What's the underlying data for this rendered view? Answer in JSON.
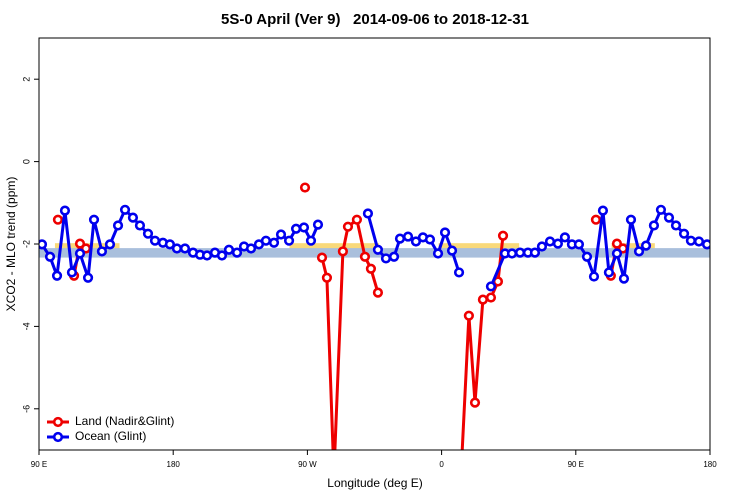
{
  "chart_data": {
    "type": "line",
    "title": "5S-0 April (Ver 9)   2014-09-06 to 2018-12-31",
    "x_label": "Longitude (deg E)",
    "y_label": "XCO2 - MLO trend (ppm)",
    "xlim": [
      90,
      540
    ],
    "xticks": [
      {
        "value": 90,
        "label": "90 E"
      },
      {
        "value": 180,
        "label": "180"
      },
      {
        "value": 270,
        "label": "90 W"
      },
      {
        "value": 360,
        "label": "0"
      },
      {
        "value": 450,
        "label": "90 E"
      },
      {
        "value": 540,
        "label": "180"
      }
    ],
    "ylim": [
      -7,
      3
    ],
    "yticks": [
      2,
      0,
      -2,
      -4,
      -6
    ],
    "legend": "bottomleft",
    "bands": [
      {
        "color": "#f9d97a",
        "xmin": 100.7,
        "xmax": 144,
        "ymin": -2.25,
        "ymax": -1.98
      },
      {
        "color": "#f9d97a",
        "xmin": 258,
        "xmax": 318,
        "ymin": -2.25,
        "ymax": -1.98
      },
      {
        "color": "#f9d97a",
        "xmin": 358,
        "xmax": 412,
        "ymin": -2.25,
        "ymax": -1.98
      },
      {
        "color": "#f9d97a",
        "xmin": 474,
        "xmax": 503,
        "ymin": -2.25,
        "ymax": -1.98
      },
      {
        "color": "#a9bfdc",
        "xmin": 90,
        "xmax": 540,
        "ymin": -2.33,
        "ymax": -2.1
      }
    ],
    "series": [
      {
        "name": "Land (Nadir&Glint)",
        "color": "#ee0000",
        "x": [
          102.7,
          null,
          113.5,
          117.5,
          121.5,
          null,
          268.4,
          null,
          279.8,
          283.1,
          287.8,
          293.8,
          297.2,
          303.2,
          308.6,
          312.6,
          317.3,
          null,
          373.0,
          378.3,
          382.4,
          387.7,
          393.1,
          397.8,
          401.2,
          null,
          463.5,
          null,
          473.5,
          477.6,
          481.6
        ],
        "values": [
          -1.41,
          null,
          -2.77,
          -1.99,
          -2.11,
          null,
          -0.63,
          null,
          -2.33,
          -2.82,
          -7.6,
          -2.18,
          -1.58,
          -1.41,
          -2.31,
          -2.6,
          -3.18,
          null,
          -7.6,
          -3.74,
          -5.85,
          -3.35,
          -3.3,
          -2.91,
          -1.8,
          null,
          -1.41,
          null,
          -2.77,
          -1.99,
          -2.11
        ]
      },
      {
        "name": "Ocean (Glint)",
        "color": "#0000ee",
        "x": [
          92.0,
          97.4,
          102.1,
          107.4,
          112.1,
          117.5,
          122.9,
          126.9,
          132.2,
          137.6,
          143.0,
          147.7,
          153.0,
          157.7,
          163.1,
          167.8,
          173.1,
          177.8,
          182.5,
          187.9,
          193.3,
          198.0,
          202.7,
          208.0,
          212.7,
          217.4,
          222.8,
          227.5,
          232.2,
          237.5,
          242.2,
          247.6,
          252.3,
          257.7,
          262.4,
          267.7,
          272.4,
          277.1,
          null,
          310.6,
          317.3,
          322.7,
          328.1,
          332.1,
          337.5,
          342.8,
          347.5,
          352.2,
          357.6,
          362.3,
          367.0,
          371.7,
          null,
          393.1,
          402.5,
          407.2,
          412.6,
          417.9,
          422.6,
          427.3,
          432.7,
          438.0,
          442.7,
          447.4,
          452.1,
          457.5,
          462.2,
          468.2,
          472.2,
          477.6,
          482.3,
          487.0,
          492.4,
          497.1,
          502.4,
          507.1,
          512.5,
          517.2,
          522.6,
          527.2,
          532.6,
          538.0
        ],
        "values": [
          -2.01,
          -2.31,
          -2.77,
          -1.19,
          -2.69,
          -2.23,
          -2.82,
          -1.41,
          -2.18,
          -2.01,
          -1.55,
          -1.17,
          -1.36,
          -1.55,
          -1.75,
          -1.92,
          -1.97,
          -2.01,
          -2.11,
          -2.11,
          -2.21,
          -2.26,
          -2.28,
          -2.21,
          -2.28,
          -2.14,
          -2.21,
          -2.06,
          -2.11,
          -2.01,
          -1.92,
          -1.97,
          -1.77,
          -1.92,
          -1.63,
          -1.6,
          -1.92,
          -1.53,
          null,
          -1.26,
          -2.14,
          -2.35,
          -2.31,
          -1.87,
          -1.82,
          -1.94,
          -1.84,
          -1.89,
          -2.23,
          -1.72,
          -2.16,
          -2.69,
          null,
          -3.03,
          -2.23,
          -2.23,
          -2.21,
          -2.21,
          -2.21,
          -2.06,
          -1.94,
          -1.99,
          -1.84,
          -2.01,
          -2.01,
          -2.31,
          -2.79,
          -1.19,
          -2.69,
          -2.23,
          -2.84,
          -1.41,
          -2.18,
          -2.04,
          -1.55,
          -1.17,
          -1.36,
          -1.55,
          -1.75,
          -1.92,
          -1.94,
          -2.01
        ]
      }
    ]
  }
}
